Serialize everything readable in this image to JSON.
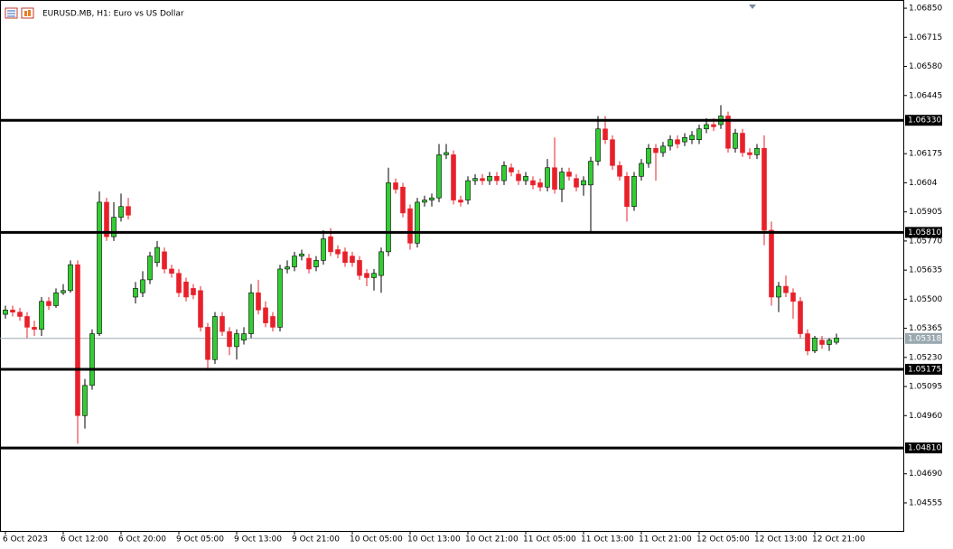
{
  "chart_data": {
    "type": "candlestick",
    "title": "EURUSD.MB, H1:  Euro vs US Dollar",
    "categories": [
      "6 Oct 2023",
      null,
      null,
      null,
      null,
      null,
      null,
      null,
      "6 Oct 12:00",
      null,
      null,
      null,
      null,
      null,
      null,
      null,
      "6 Oct 20:00",
      null,
      null,
      null,
      null,
      null,
      null,
      null,
      "9 Oct 05:00",
      null,
      null,
      null,
      null,
      null,
      null,
      null,
      "9 Oct 13:00",
      null,
      null,
      null,
      null,
      null,
      null,
      null,
      "9 Oct 21:00",
      null,
      null,
      null,
      null,
      null,
      null,
      null,
      "10 Oct 05:00",
      null,
      null,
      null,
      null,
      null,
      null,
      null,
      "10 Oct 13:00",
      null,
      null,
      null,
      null,
      null,
      null,
      null,
      "10 Oct 21:00",
      null,
      null,
      null,
      null,
      null,
      null,
      null,
      "11 Oct 05:00",
      null,
      null,
      null,
      null,
      null,
      null,
      null,
      "11 Oct 13:00",
      null,
      null,
      null,
      null,
      null,
      null,
      null,
      "11 Oct 21:00",
      null,
      null,
      null,
      null,
      null,
      null,
      null,
      "12 Oct 05:00",
      null,
      null,
      null,
      null,
      null,
      null,
      null,
      "12 Oct 13:00",
      null,
      null,
      null,
      null,
      null,
      null,
      null,
      "12 Oct 21:00",
      null,
      null,
      null
    ],
    "open": [
      1.0543,
      1.0545,
      1.0544,
      1.0542,
      1.0537,
      1.0536,
      1.0549,
      1.0547,
      1.0553,
      1.0554,
      1.0566,
      1.0496,
      1.051,
      1.0534,
      1.0595,
      1.0579,
      1.0588,
      1.0593,
      1.0551,
      1.0553,
      1.0559,
      1.0567,
      1.0572,
      1.0564,
      1.0562,
      1.0558,
      1.0555,
      1.0554,
      1.0537,
      1.0522,
      1.0542,
      1.0535,
      1.0528,
      1.0531,
      1.0534,
      1.0553,
      1.0546,
      1.0542,
      1.0537,
      1.0564,
      1.0565,
      1.057,
      1.0569,
      1.0565,
      1.0568,
      1.0579,
      1.0573,
      1.0572,
      1.057,
      1.0568,
      1.0562,
      1.056,
      1.0561,
      1.0572,
      1.0604,
      1.0602,
      1.0592,
      1.0576,
      1.0595,
      1.0596,
      1.0597,
      1.0617,
      1.0617,
      1.0596,
      1.0596,
      1.0605,
      1.0606,
      1.0605,
      1.0607,
      1.0605,
      1.0611,
      1.0608,
      1.0605,
      1.0605,
      1.0604,
      1.0602,
      1.0611,
      1.0601,
      1.0609,
      1.0606,
      1.0603,
      1.0603,
      1.0614,
      1.0629,
      1.0624,
      1.0612,
      1.0607,
      1.0593,
      1.0607,
      1.0613,
      1.062,
      1.0618,
      1.0621,
      1.0624,
      1.0623,
      1.0624,
      1.0624,
      1.0629,
      1.0631,
      1.0631,
      1.0635,
      1.062,
      1.0627,
      1.0618,
      1.0617,
      1.062,
      1.0582,
      1.0551,
      1.0556,
      1.0553,
      1.0549,
      1.0534,
      1.0526,
      1.0531,
      1.0529,
      1.053
    ],
    "high": [
      1.0547,
      1.0547,
      1.0546,
      1.0544,
      1.054,
      1.0551,
      1.0551,
      1.0555,
      1.0557,
      1.0568,
      1.0568,
      1.0513,
      1.0536,
      1.06,
      1.0597,
      1.0595,
      1.0599,
      1.0597,
      1.0558,
      1.0563,
      1.0572,
      1.0577,
      1.0574,
      1.0566,
      1.0564,
      1.056,
      1.0557,
      1.0556,
      1.0539,
      1.0544,
      1.0544,
      1.0537,
      1.0536,
      1.0537,
      1.0557,
      1.0559,
      1.0549,
      1.0544,
      1.0566,
      1.0568,
      1.0572,
      1.0573,
      1.0571,
      1.057,
      1.0582,
      1.0583,
      1.0575,
      1.0574,
      1.0572,
      1.057,
      1.0564,
      1.0564,
      1.0574,
      1.0611,
      1.0606,
      1.0604,
      1.0594,
      1.0597,
      1.0598,
      1.0599,
      1.0622,
      1.0622,
      1.0619,
      1.0598,
      1.0607,
      1.0608,
      1.0608,
      1.0609,
      1.0609,
      1.0614,
      1.0613,
      1.061,
      1.0609,
      1.0607,
      1.0606,
      1.0615,
      1.0625,
      1.0611,
      1.0611,
      1.0608,
      1.0607,
      1.0616,
      1.0635,
      1.0635,
      1.0626,
      1.0614,
      1.0609,
      1.0609,
      1.0615,
      1.0622,
      1.0622,
      1.0623,
      1.0626,
      1.0626,
      1.0627,
      1.0628,
      1.0631,
      1.0634,
      1.0634,
      1.064,
      1.0637,
      1.0629,
      1.0629,
      1.062,
      1.0622,
      1.0626,
      1.0586,
      1.0558,
      1.0561,
      1.0555,
      1.0551,
      1.0536,
      1.0533,
      1.0533,
      1.0532,
      1.0534
    ],
    "low": [
      1.0541,
      1.0542,
      1.054,
      1.0532,
      1.0533,
      1.0533,
      1.0545,
      1.0546,
      1.0552,
      1.0553,
      1.0483,
      1.049,
      1.0508,
      1.0533,
      1.0577,
      1.0577,
      1.0586,
      1.0587,
      1.0548,
      1.0551,
      1.0557,
      1.0565,
      1.0562,
      1.056,
      1.0551,
      1.0549,
      1.055,
      1.0535,
      1.0518,
      1.052,
      1.0533,
      1.0524,
      1.0522,
      1.0529,
      1.0532,
      1.0543,
      1.0537,
      1.0535,
      1.0535,
      1.0562,
      1.0563,
      1.0568,
      1.0562,
      1.0563,
      1.0566,
      1.057,
      1.0569,
      1.0565,
      1.0565,
      1.0559,
      1.0556,
      1.0554,
      1.0553,
      1.057,
      1.0599,
      1.0588,
      1.0573,
      1.0574,
      1.0593,
      1.0593,
      1.0595,
      1.0615,
      1.0594,
      1.0593,
      1.0594,
      1.0603,
      1.0603,
      1.0603,
      1.0603,
      1.0603,
      1.0607,
      1.0603,
      1.0603,
      1.0601,
      1.06,
      1.06,
      1.0599,
      1.0595,
      1.0605,
      1.06,
      1.0598,
      1.0581,
      1.0612,
      1.0622,
      1.061,
      1.0605,
      1.0586,
      1.0591,
      1.0605,
      1.0611,
      1.0605,
      1.0616,
      1.0619,
      1.062,
      1.0621,
      1.0622,
      1.0622,
      1.0627,
      1.0628,
      1.0629,
      1.0618,
      1.0618,
      1.0616,
      1.0615,
      1.0615,
      1.0575,
      1.0547,
      1.0544,
      1.0551,
      1.0541,
      1.0532,
      1.0524,
      1.0525,
      1.0527,
      1.0526,
      1.0529
    ],
    "close": [
      1.0545,
      1.0544,
      1.0542,
      1.0537,
      1.0536,
      1.0549,
      1.0547,
      1.0553,
      1.0554,
      1.0566,
      1.0496,
      1.051,
      1.0534,
      1.0595,
      1.0579,
      1.0588,
      1.0593,
      1.0589,
      1.0555,
      1.0559,
      1.057,
      1.0574,
      1.0564,
      1.0562,
      1.0553,
      1.0551,
      1.0552,
      1.0537,
      1.0522,
      1.0542,
      1.0535,
      1.0528,
      1.0534,
      1.0534,
      1.0553,
      1.0545,
      1.0539,
      1.0537,
      1.0564,
      1.0565,
      1.057,
      1.0571,
      1.0564,
      1.0568,
      1.0578,
      1.0572,
      1.0571,
      1.0567,
      1.0567,
      1.0561,
      1.056,
      1.0562,
      1.0572,
      1.0604,
      1.0601,
      1.059,
      1.0576,
      1.0595,
      1.0596,
      1.0597,
      1.0617,
      1.0618,
      1.0596,
      1.0595,
      1.0605,
      1.0606,
      1.0605,
      1.0607,
      1.0605,
      1.0612,
      1.0609,
      1.0605,
      1.0607,
      1.0603,
      1.0602,
      1.0611,
      1.0601,
      1.0609,
      1.0607,
      1.0602,
      1.0605,
      1.0614,
      1.0629,
      1.0624,
      1.0612,
      1.0607,
      1.0593,
      1.0607,
      1.0613,
      1.062,
      1.0618,
      1.0621,
      1.0624,
      1.0622,
      1.0625,
      1.0626,
      1.0629,
      1.0631,
      1.063,
      1.0635,
      1.062,
      1.0627,
      1.0618,
      1.0617,
      1.062,
      1.0582,
      1.0551,
      1.0556,
      1.0553,
      1.0549,
      1.0534,
      1.0526,
      1.0532,
      1.0529,
      1.0531,
      1.0532
    ],
    "bull_color": "#32cd32",
    "bear_color": "#e8202a",
    "ylim": [
      1.04425,
      1.06888
    ],
    "yticks": [
      {
        "value": 1.0685,
        "label": "1.06850"
      },
      1.06715,
      {
        "value": 1.0658,
        "label": "1.06580"
      },
      1.06445,
      1.06175,
      1.0604,
      1.05905,
      {
        "value": 1.0577,
        "label": "1.05770"
      },
      1.05635,
      {
        "value": 1.055,
        "label": "1.05500"
      },
      1.05365,
      {
        "value": 1.0523,
        "label": "1.05230"
      },
      1.05095,
      {
        "value": 1.0496,
        "label": "1.04960"
      },
      {
        "value": 1.0469,
        "label": "1.04690"
      },
      1.04555
    ],
    "levels": [
      {
        "value": 1.0633,
        "label": "1.06330"
      },
      {
        "value": 1.0581,
        "label": "1.05810"
      },
      {
        "value": 1.05175,
        "label": "1.05175"
      },
      {
        "value": 1.0481,
        "label": "1.04810"
      }
    ],
    "current_price": 1.05318,
    "grid": false
  }
}
